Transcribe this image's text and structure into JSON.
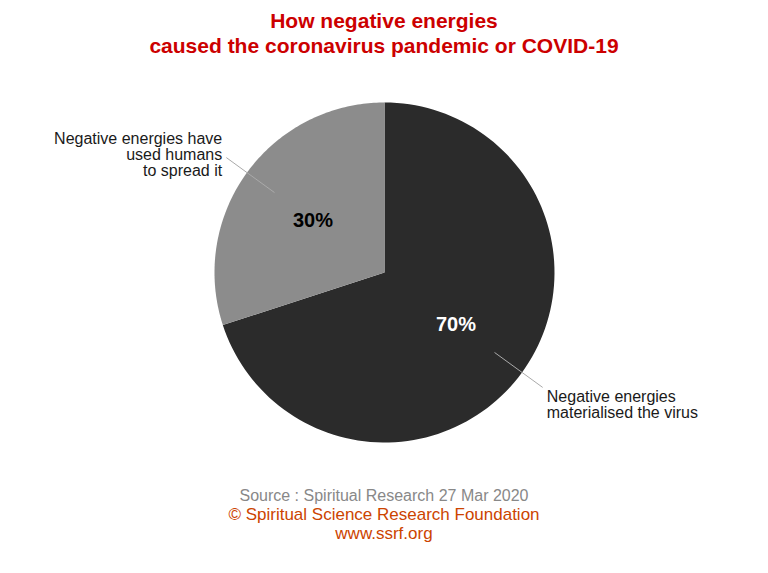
{
  "chart_data": {
    "type": "pie",
    "title": "How negative energies\ncaused the coronavirus pandemic or COVID-19",
    "title_color": "#cc0000",
    "values": [
      70,
      30
    ],
    "value_labels": [
      "70%",
      "30%"
    ],
    "colors": [
      "#2b2b2b",
      "#8c8c8c"
    ],
    "label_colors": [
      "white",
      "black"
    ],
    "data_labels": true,
    "annotations": [
      "Negative energies\nmaterialised the virus",
      "Negative energies have\nused humans\nto spread it"
    ],
    "annotation_color": "#1a1a1a",
    "caption": [
      "Source : Spiritual Research 27 Mar 2020",
      "© Spiritual Science Research Foundation",
      "www.ssrf.org"
    ],
    "caption_colors": [
      "#888888",
      "#cc4400",
      "#cc4400"
    ]
  }
}
